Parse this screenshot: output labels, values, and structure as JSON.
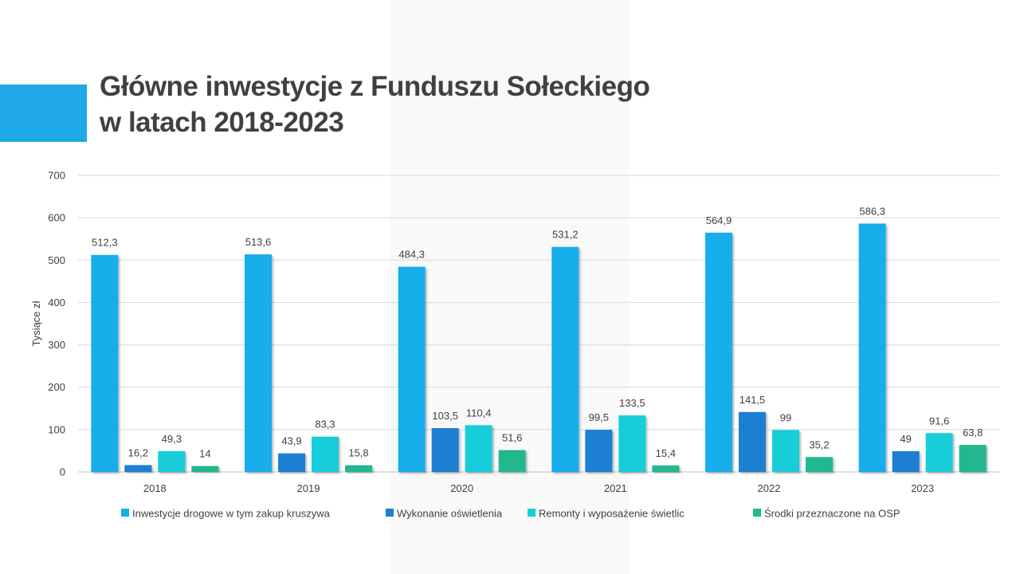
{
  "slide": {
    "title_line1": "Główne inwestycje z Funduszu Sołeckiego",
    "title_line2": "w latach 2018-2023",
    "accent_color": "#1EA9E6"
  },
  "chart_data": {
    "type": "bar",
    "categories": [
      "2018",
      "2019",
      "2020",
      "2021",
      "2022",
      "2023"
    ],
    "series": [
      {
        "name": "Inwestycje drogowe w tym zakup kruszywa",
        "color": "#12AEEB",
        "values": [
          512.3,
          513.6,
          484.3,
          531.2,
          564.9,
          586.3
        ],
        "labels": [
          "512,3",
          "513,6",
          "484,3",
          "531,2",
          "564,9",
          "586,3"
        ]
      },
      {
        "name": "Wykonanie oświetlenia",
        "color": "#1B7FD2",
        "values": [
          16.2,
          43.9,
          103.5,
          99.5,
          141.5,
          49
        ],
        "labels": [
          "16,2",
          "43,9",
          "103,5",
          "99,5",
          "141,5",
          "49"
        ]
      },
      {
        "name": "Remonty i wyposażenie świetlic",
        "color": "#16CDD9",
        "values": [
          49.3,
          83.3,
          110.4,
          133.5,
          99,
          91.6
        ],
        "labels": [
          "49,3",
          "83,3",
          "110,4",
          "133,5",
          "99",
          "91,6"
        ]
      },
      {
        "name": "Środki przeznaczone na OSP",
        "color": "#24B78F",
        "values": [
          14,
          15.8,
          51.6,
          15.4,
          35.2,
          63.8
        ],
        "labels": [
          "14",
          "15,8",
          "51,6",
          "15,4",
          "35,2",
          "63,8"
        ]
      }
    ],
    "title": "",
    "xlabel": "",
    "ylabel": "Tysiące zł",
    "ylim": [
      0,
      700
    ],
    "yticks": [
      "0",
      "100",
      "200",
      "300",
      "400",
      "500",
      "600",
      "700"
    ],
    "grid": true,
    "legend_position": "bottom"
  }
}
